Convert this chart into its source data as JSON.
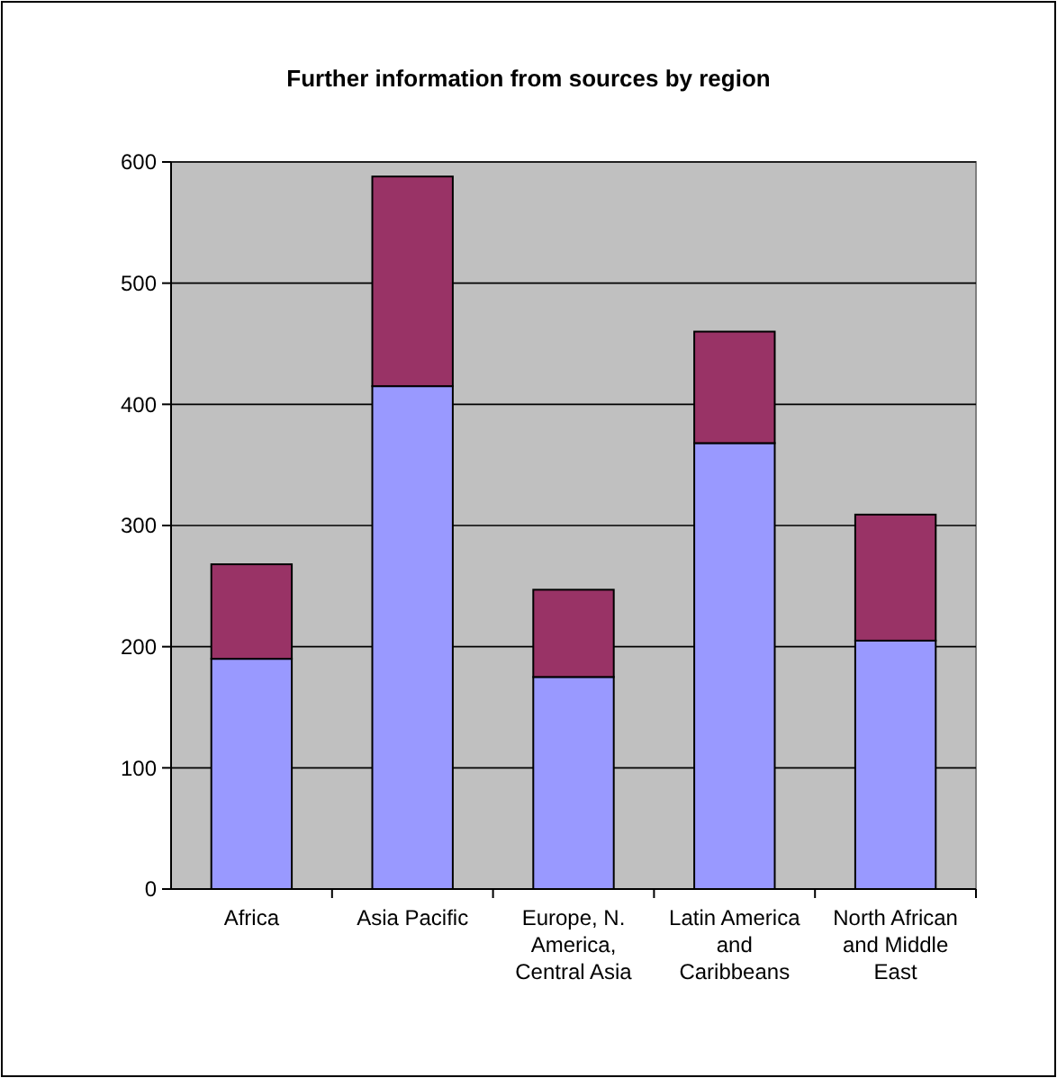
{
  "chart_data": {
    "type": "bar",
    "title": "Further information from sources by region",
    "categories": [
      "Africa",
      "Asia Pacific",
      "Europe, N. America, Central Asia",
      "Latin America and Caribbeans",
      "North African and Middle East"
    ],
    "stacked": true,
    "series": [
      {
        "color": "#9999ff",
        "values": [
          190,
          415,
          175,
          368,
          205
        ]
      },
      {
        "color": "#993366",
        "values": [
          78,
          173,
          72,
          92,
          104
        ]
      }
    ],
    "ylim": [
      0,
      600
    ],
    "yticks": [
      0,
      100,
      200,
      300,
      400,
      500,
      600
    ],
    "grid": "y"
  }
}
